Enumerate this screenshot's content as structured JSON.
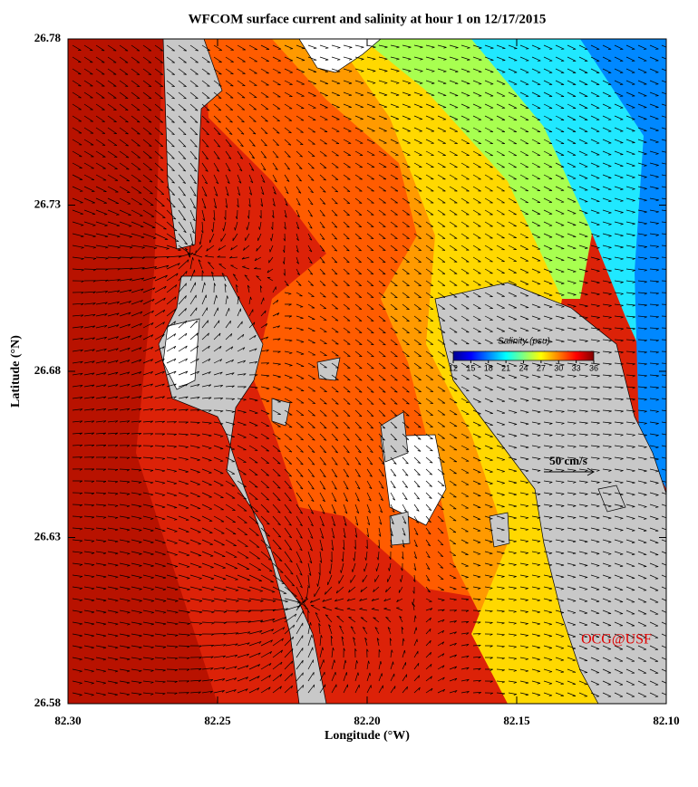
{
  "chart_data": {
    "type": "map",
    "title": "WFCOM surface current and salinity at hour 1 on 12/17/2015",
    "x_label": "Longitude (°W)",
    "y_label": "Latitude (°N)",
    "xlim": [
      82.3,
      82.1
    ],
    "xticks": [
      {
        "value": 82.3,
        "label": "82.30"
      },
      82.25,
      {
        "value": 82.2,
        "label": "82.20"
      },
      82.15,
      {
        "value": 82.1,
        "label": "82.10"
      }
    ],
    "ylim": [
      26.58,
      26.78
    ],
    "yticks": [
      26.58,
      26.63,
      26.68,
      26.73,
      26.78
    ],
    "colorbar": {
      "label": "Salinity (psu)",
      "clim": [
        12,
        36
      ],
      "ticks": [
        12,
        15,
        18,
        21,
        24,
        27,
        30,
        33,
        36
      ],
      "colormap": [
        "#00008f",
        "#0000ff",
        "#0080ff",
        "#00ffff",
        "#80ff80",
        "#ffff00",
        "#ff8000",
        "#ff0000",
        "#800000"
      ]
    },
    "scale_arrow": {
      "label": "50 cm/s"
    },
    "credit": "OCG@USF"
  }
}
